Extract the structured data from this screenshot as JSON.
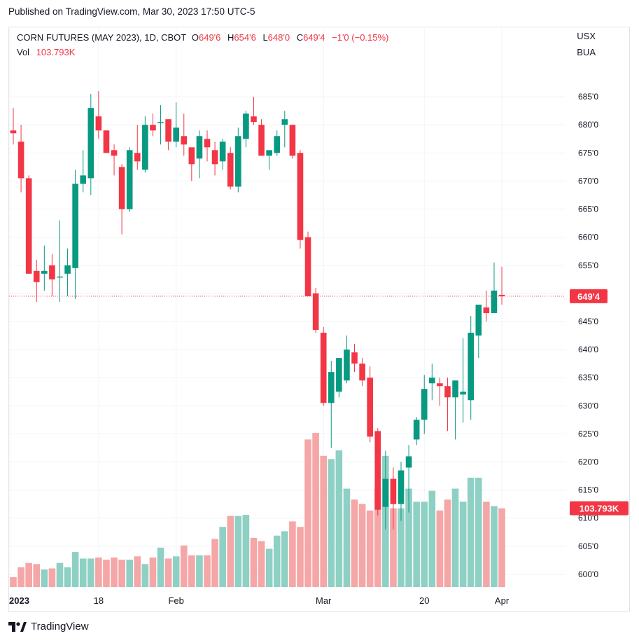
{
  "header": {
    "published": "Published on TradingView.com, Mar 30, 2023 17:50 UTC-5"
  },
  "legend": {
    "symbol": "CORN FUTURES (MAY 2023), 1D, CBOT",
    "open_label": "O",
    "open": "649'6",
    "high_label": "H",
    "high": "654'6",
    "low_label": "L",
    "low": "648'0",
    "close_label": "C",
    "close": "649'4",
    "change": "−1'0 (−0.15%)",
    "vol_label": "Vol",
    "vol_value": "103.793K"
  },
  "currency": {
    "line1": "USX",
    "line2": "BUA"
  },
  "badges": {
    "price": "649'4",
    "volume": "103.793K"
  },
  "footer": {
    "brand": "TradingView"
  },
  "colors": {
    "up": "#089981",
    "down": "#f23645",
    "up_vol": "#8fd0c4",
    "down_vol": "#f5a6a6",
    "grid": "#f0f3fa"
  },
  "chart_data": {
    "type": "candlestick",
    "title": "CORN FUTURES (MAY 2023), 1D, CBOT",
    "y_tick_labels": [
      "600'0",
      "605'0",
      "610'0",
      "615'0",
      "620'0",
      "625'0",
      "630'0",
      "635'0",
      "640'0",
      "645'0",
      "650'0",
      "655'0",
      "660'0",
      "665'0",
      "670'0",
      "675'0",
      "680'0",
      "685'0"
    ],
    "y_tick_values": [
      600,
      605,
      610,
      615,
      620,
      625,
      630,
      635,
      640,
      645,
      650,
      655,
      660,
      665,
      670,
      675,
      680,
      685
    ],
    "ylim": [
      597.5,
      691
    ],
    "x_tick_labels": [
      "2023",
      "18",
      "Feb",
      "Mar",
      "20",
      "Apr"
    ],
    "x_tick_index": [
      0,
      11,
      21,
      40,
      53,
      63
    ],
    "last_price": 649.5,
    "ohlc": [
      {
        "o": 679,
        "h": 683,
        "l": 676.5,
        "c": 678.5
      },
      {
        "o": 677,
        "h": 680,
        "l": 668,
        "c": 670.5
      },
      {
        "o": 670.5,
        "h": 671,
        "l": 653.5,
        "c": 653.5
      },
      {
        "o": 654,
        "h": 656,
        "l": 648.5,
        "c": 652
      },
      {
        "o": 653.5,
        "h": 658.5,
        "l": 650.5,
        "c": 654
      },
      {
        "o": 655,
        "h": 657,
        "l": 649.5,
        "c": 652.5
      },
      {
        "o": 653,
        "h": 663,
        "l": 648.5,
        "c": 653
      },
      {
        "o": 653.5,
        "h": 658,
        "l": 649.5,
        "c": 655
      },
      {
        "o": 654.5,
        "h": 672,
        "l": 649,
        "c": 669.5
      },
      {
        "o": 669.5,
        "h": 675.5,
        "l": 668,
        "c": 671
      },
      {
        "o": 670.5,
        "h": 685.5,
        "l": 667.5,
        "c": 683
      },
      {
        "o": 681.5,
        "h": 686,
        "l": 677.5,
        "c": 679
      },
      {
        "o": 679,
        "h": 679,
        "l": 675,
        "c": 675
      },
      {
        "o": 675.5,
        "h": 676.5,
        "l": 671,
        "c": 674.5
      },
      {
        "o": 672.5,
        "h": 673,
        "l": 660.5,
        "c": 665
      },
      {
        "o": 665,
        "h": 676,
        "l": 664.5,
        "c": 675.5
      },
      {
        "o": 675,
        "h": 680,
        "l": 672,
        "c": 673.5
      },
      {
        "o": 672,
        "h": 681.5,
        "l": 671.5,
        "c": 680
      },
      {
        "o": 680,
        "h": 682,
        "l": 678,
        "c": 679
      },
      {
        "o": 680.5,
        "h": 683.5,
        "l": 676.5,
        "c": 680.5
      },
      {
        "o": 681,
        "h": 681,
        "l": 675.5,
        "c": 677
      },
      {
        "o": 677,
        "h": 684,
        "l": 676,
        "c": 679.5
      },
      {
        "o": 678,
        "h": 682,
        "l": 674.5,
        "c": 676.5
      },
      {
        "o": 676,
        "h": 675.5,
        "l": 670,
        "c": 673
      },
      {
        "o": 674,
        "h": 679,
        "l": 670.5,
        "c": 678
      },
      {
        "o": 677.5,
        "h": 679,
        "l": 673.5,
        "c": 676
      },
      {
        "o": 675.5,
        "h": 677,
        "l": 671,
        "c": 673
      },
      {
        "o": 673.5,
        "h": 677.5,
        "l": 672,
        "c": 677
      },
      {
        "o": 675,
        "h": 676,
        "l": 668.5,
        "c": 669
      },
      {
        "o": 669,
        "h": 679.5,
        "l": 668,
        "c": 678
      },
      {
        "o": 677.5,
        "h": 682.5,
        "l": 676,
        "c": 682
      },
      {
        "o": 681.5,
        "h": 685,
        "l": 680,
        "c": 680.5
      },
      {
        "o": 680,
        "h": 681,
        "l": 674.5,
        "c": 674.5
      },
      {
        "o": 674.5,
        "h": 675.5,
        "l": 672,
        "c": 675.5
      },
      {
        "o": 675,
        "h": 679,
        "l": 674.5,
        "c": 678
      },
      {
        "o": 680,
        "h": 682.5,
        "l": 676,
        "c": 681
      },
      {
        "o": 680,
        "h": 680,
        "l": 674,
        "c": 674.5
      },
      {
        "o": 675,
        "h": 675.5,
        "l": 658,
        "c": 659.5
      },
      {
        "o": 660,
        "h": 661,
        "l": 649.5,
        "c": 649.5
      },
      {
        "o": 650,
        "h": 651,
        "l": 643,
        "c": 643.5
      },
      {
        "o": 643,
        "h": 644,
        "l": 630,
        "c": 630.5
      },
      {
        "o": 630.5,
        "h": 638,
        "l": 622.5,
        "c": 636
      },
      {
        "o": 632.5,
        "h": 638,
        "l": 631.5,
        "c": 638.5
      },
      {
        "o": 634.5,
        "h": 642.5,
        "l": 634,
        "c": 640
      },
      {
        "o": 639.5,
        "h": 641,
        "l": 636,
        "c": 637.5
      },
      {
        "o": 637.5,
        "h": 638.5,
        "l": 633.5,
        "c": 634.5
      },
      {
        "o": 635,
        "h": 637,
        "l": 623.5,
        "c": 624.5
      },
      {
        "o": 625.5,
        "h": 626,
        "l": 610.5,
        "c": 611.5
      },
      {
        "o": 612,
        "h": 622,
        "l": 608,
        "c": 617
      },
      {
        "o": 617,
        "h": 619,
        "l": 608,
        "c": 612.5
      },
      {
        "o": 612.5,
        "h": 620,
        "l": 609.5,
        "c": 618.5
      },
      {
        "o": 619,
        "h": 623,
        "l": 611,
        "c": 621
      },
      {
        "o": 624,
        "h": 628,
        "l": 623,
        "c": 627.5
      },
      {
        "o": 627.5,
        "h": 635.5,
        "l": 625,
        "c": 633
      },
      {
        "o": 634,
        "h": 637.5,
        "l": 631,
        "c": 635
      },
      {
        "o": 634,
        "h": 635,
        "l": 630,
        "c": 633.5
      },
      {
        "o": 633.5,
        "h": 635,
        "l": 625.5,
        "c": 631.5
      },
      {
        "o": 631.5,
        "h": 634,
        "l": 624,
        "c": 634.5
      },
      {
        "o": 632,
        "h": 642,
        "l": 627,
        "c": 632.5
      },
      {
        "o": 631,
        "h": 646,
        "l": 627.5,
        "c": 643
      },
      {
        "o": 642.5,
        "h": 648,
        "l": 638.5,
        "c": 648
      },
      {
        "o": 647.5,
        "h": 650.5,
        "l": 645,
        "c": 646.5
      },
      {
        "o": 646.5,
        "h": 655.5,
        "l": 647,
        "c": 650.5
      },
      {
        "o": 649.75,
        "h": 654.75,
        "l": 648,
        "c": 649.5
      }
    ],
    "volume_scale": [
      0,
      100
    ],
    "volume": [
      9,
      18,
      22,
      21,
      16,
      17,
      22,
      18,
      32,
      26,
      26,
      27,
      25,
      27,
      25,
      25,
      28,
      21,
      27,
      36,
      26,
      28,
      38,
      29,
      29,
      29,
      44,
      55,
      65,
      65,
      66,
      45,
      42,
      35,
      47,
      51,
      60,
      55,
      135,
      141,
      120,
      117,
      125,
      90,
      80,
      76,
      70,
      90,
      120,
      72,
      72,
      90,
      78,
      78,
      88,
      70,
      80,
      90,
      78,
      100,
      100,
      78,
      74,
      72
    ]
  }
}
